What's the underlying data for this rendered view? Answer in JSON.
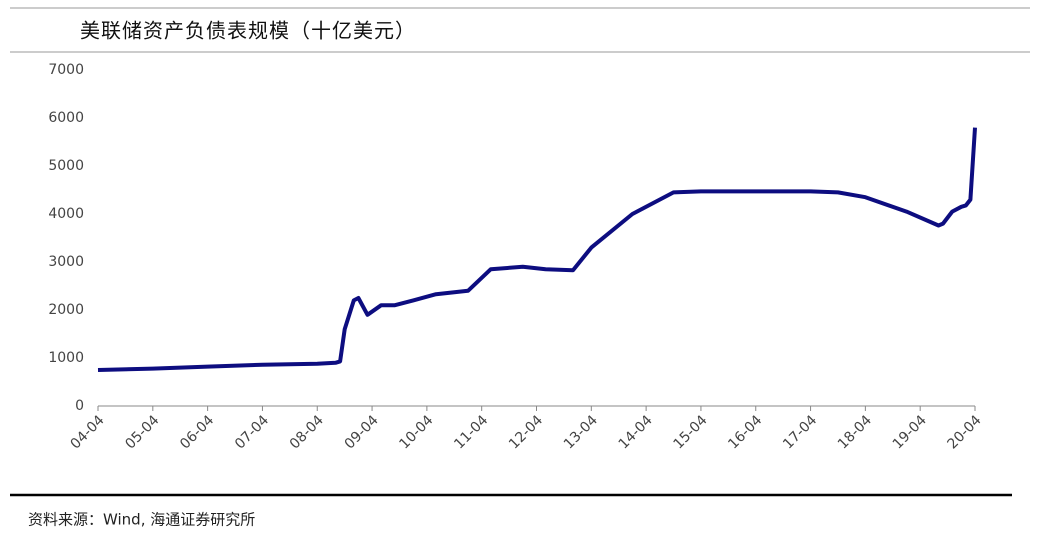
{
  "chart_data": {
    "type": "line",
    "title": "美联储资产负债表规模（十亿美元）",
    "source": "资料来源：Wind, 海通证券研究所",
    "x": [
      "04-04",
      "05-04",
      "06-04",
      "07-04",
      "08-04",
      "08-08",
      "08-09",
      "08-10",
      "08-12",
      "09-01",
      "09-03",
      "09-06",
      "09-09",
      "10-01",
      "10-06",
      "11-01",
      "11-06",
      "12-01",
      "12-06",
      "12-12",
      "13-04",
      "14-01",
      "14-10",
      "15-04",
      "17-04",
      "17-10",
      "18-04",
      "19-01",
      "19-08",
      "19-09",
      "19-11",
      "20-01",
      "20-02",
      "20-03",
      "20-04"
    ],
    "series": [
      {
        "name": "美联储资产负债表规模",
        "color": "#0d0d80",
        "values": [
          750,
          780,
          820,
          860,
          880,
          900,
          930,
          1600,
          2200,
          2250,
          1900,
          2100,
          2100,
          2200,
          2330,
          2400,
          2850,
          2900,
          2850,
          2830,
          3300,
          4000,
          4450,
          4470,
          4470,
          4450,
          4350,
          4050,
          3760,
          3800,
          4050,
          4150,
          4180,
          4300,
          5800
        ]
      }
    ],
    "ylim": [
      0,
      7000
    ],
    "yticks": [
      0,
      1000,
      2000,
      3000,
      4000,
      5000,
      6000,
      7000
    ],
    "xticks": [
      "04-04",
      "05-04",
      "06-04",
      "07-04",
      "08-04",
      "09-04",
      "10-04",
      "11-04",
      "12-04",
      "13-04",
      "14-04",
      "15-04",
      "16-04",
      "17-04",
      "18-04",
      "19-04",
      "20-04"
    ],
    "grid": false
  }
}
